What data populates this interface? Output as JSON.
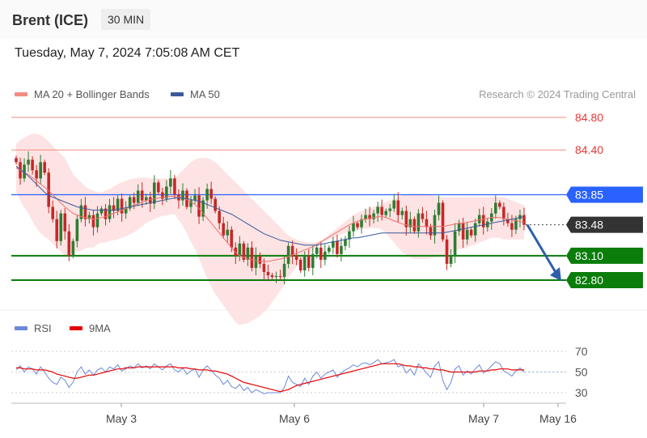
{
  "header": {
    "instrument": "Brent (ICE)",
    "timeframe": "30 MIN"
  },
  "datetime": "Tuesday, May 7, 2024 7:05:08 AM CET",
  "credit": "Research © 2024 Trading Central",
  "colors": {
    "resistance": "#f28b82",
    "pivot": "#2962ff",
    "support": "#0a7d0a",
    "arrow": "#2f5fa8",
    "ma50": "#3a5a9a",
    "rsi": "#6a8ad8",
    "rsi_ma": "#e60000",
    "up": "#2e7d32",
    "down": "#c62828"
  },
  "chart_data": [
    {
      "type": "candlestick",
      "title": "",
      "legend": [
        {
          "name": "MA 20 + Bollinger Bands",
          "color": "#f28b82"
        },
        {
          "name": "MA 50",
          "color": "#3a5a9a"
        }
      ],
      "ylim": [
        82.7,
        84.9
      ],
      "levels": [
        {
          "label": "84.80",
          "value": 84.8,
          "kind": "resistance"
        },
        {
          "label": "84.40",
          "value": 84.4,
          "kind": "resistance"
        },
        {
          "label": "83.85",
          "value": 83.85,
          "kind": "pivot"
        },
        {
          "label": "83.48",
          "value": 83.48,
          "kind": "last"
        },
        {
          "label": "83.10",
          "value": 83.1,
          "kind": "support"
        },
        {
          "label": "82.80",
          "value": 82.8,
          "kind": "support"
        }
      ],
      "forecast": {
        "from": 83.48,
        "to": 82.8,
        "direction": "down"
      },
      "close": [
        84.25,
        84.05,
        84.22,
        84.28,
        84.15,
        84.05,
        84.25,
        84.12,
        83.7,
        83.55,
        83.28,
        83.62,
        83.4,
        83.1,
        83.28,
        83.55,
        83.72,
        83.55,
        83.6,
        83.45,
        83.62,
        83.68,
        83.55,
        83.72,
        83.65,
        83.8,
        83.62,
        83.68,
        83.82,
        83.75,
        83.9,
        83.78,
        83.82,
        83.74,
        84.0,
        83.88,
        83.8,
        83.95,
        84.05,
        83.85,
        83.78,
        83.9,
        83.7,
        83.78,
        83.84,
        83.58,
        83.78,
        83.92,
        83.8,
        83.65,
        83.5,
        83.35,
        83.42,
        83.2,
        83.1,
        83.25,
        83.05,
        83.2,
        82.95,
        83.1,
        83.0,
        82.9,
        82.86,
        82.84,
        82.85,
        82.84,
        83.0,
        83.22,
        83.1,
        83.05,
        82.92,
        83.1,
        82.95,
        83.12,
        83.2,
        83.05,
        83.15,
        83.2,
        83.28,
        83.12,
        83.22,
        83.3,
        83.4,
        83.5,
        83.45,
        83.55,
        83.6,
        83.55,
        83.62,
        83.7,
        83.6,
        83.65,
        83.68,
        83.78,
        83.6,
        83.65,
        83.45,
        83.55,
        83.4,
        83.62,
        83.55,
        83.45,
        83.35,
        83.6,
        83.75,
        83.3,
        83.0,
        83.1,
        83.4,
        83.5,
        83.3,
        83.42,
        83.35,
        83.5,
        83.6,
        83.45,
        83.52,
        83.62,
        83.75,
        83.7,
        83.55,
        83.5,
        83.42,
        83.55,
        83.6,
        83.48
      ],
      "ma20": [
        84.18,
        84.15,
        84.12,
        84.1,
        84.06,
        84.02,
        83.98,
        83.94,
        83.9,
        83.85,
        83.8,
        83.75,
        83.7,
        83.66,
        83.62,
        83.6,
        83.58,
        83.57,
        83.56,
        83.55,
        83.56,
        83.57,
        83.58,
        83.6,
        83.62,
        83.64,
        83.66,
        83.68,
        83.7,
        83.72,
        83.74,
        83.76,
        83.78,
        83.79,
        83.8,
        83.81,
        83.82,
        83.82,
        83.83,
        83.83,
        83.82,
        83.81,
        83.79,
        83.76,
        83.73,
        83.68,
        83.62,
        83.56,
        83.5,
        83.44,
        83.38,
        83.32,
        83.26,
        83.2,
        83.14,
        83.1,
        83.08,
        83.06,
        83.05,
        83.04,
        83.03,
        83.03,
        83.03,
        83.04,
        83.05,
        83.06,
        83.07,
        83.09,
        83.11,
        83.13,
        83.15,
        83.17,
        83.19,
        83.21,
        83.24,
        83.27,
        83.3,
        83.33,
        83.36,
        83.39,
        83.42,
        83.45,
        83.48,
        83.5,
        83.52,
        83.54,
        83.55,
        83.56,
        83.57,
        83.58,
        83.58,
        83.57,
        83.55,
        83.53,
        83.51,
        83.49,
        83.48,
        83.47,
        83.46,
        83.46,
        83.46,
        83.46,
        83.46,
        83.46,
        83.46,
        83.46,
        83.47,
        83.48,
        83.49,
        83.5,
        83.5,
        83.51,
        83.52,
        83.53,
        83.54,
        83.55,
        83.56,
        83.57,
        83.57,
        83.57,
        83.56,
        83.55,
        83.54,
        83.53,
        83.52,
        83.51
      ],
      "band_upper": [
        84.48,
        84.52,
        84.55,
        84.58,
        84.6,
        84.6,
        84.58,
        84.55,
        84.5,
        84.45,
        84.4,
        84.35,
        84.3,
        84.2,
        84.1,
        84.05,
        84.0,
        83.95,
        83.92,
        83.9,
        83.88,
        83.88,
        83.9,
        83.92,
        83.95,
        83.98,
        84.0,
        84.02,
        84.04,
        84.05,
        84.06,
        84.06,
        84.06,
        84.05,
        84.05,
        84.05,
        84.05,
        84.05,
        84.05,
        84.05,
        84.1,
        84.15,
        84.2,
        84.25,
        84.28,
        84.3,
        84.3,
        84.3,
        84.28,
        84.25,
        84.2,
        84.15,
        84.1,
        84.05,
        84.0,
        83.95,
        83.9,
        83.85,
        83.8,
        83.75,
        83.7,
        83.65,
        83.6,
        83.55,
        83.5,
        83.45,
        83.4,
        83.35,
        83.32,
        83.3,
        83.28,
        83.27,
        83.26,
        83.26,
        83.27,
        83.29,
        83.32,
        83.36,
        83.4,
        83.44,
        83.48,
        83.52,
        83.56,
        83.6,
        83.63,
        83.65,
        83.67,
        83.68,
        83.7,
        83.72,
        83.74,
        83.76,
        83.78,
        83.8,
        83.82,
        83.84,
        83.85,
        83.86,
        83.86,
        83.86,
        83.86,
        83.86,
        83.85,
        83.84,
        83.83,
        83.82,
        83.82,
        83.82,
        83.82,
        83.82,
        83.82,
        83.82,
        83.82,
        83.82,
        83.82,
        83.82,
        83.82,
        83.82,
        83.82,
        83.82,
        83.82,
        83.8,
        83.78,
        83.76,
        83.74,
        83.72
      ],
      "band_lower": [
        83.88,
        83.78,
        83.69,
        83.62,
        83.52,
        83.44,
        83.38,
        83.33,
        83.3,
        83.25,
        83.2,
        83.15,
        83.1,
        83.12,
        83.14,
        83.15,
        83.16,
        83.19,
        83.2,
        83.2,
        83.24,
        83.26,
        83.26,
        83.28,
        83.29,
        83.3,
        83.32,
        83.34,
        83.36,
        83.39,
        83.42,
        83.46,
        83.5,
        83.53,
        83.55,
        83.57,
        83.59,
        83.59,
        83.61,
        83.61,
        83.54,
        83.47,
        83.38,
        83.27,
        83.18,
        83.06,
        82.94,
        82.82,
        82.72,
        82.63,
        82.56,
        82.49,
        82.42,
        82.35,
        82.28,
        82.25,
        82.26,
        82.27,
        82.3,
        82.33,
        82.36,
        82.41,
        82.46,
        82.53,
        82.6,
        82.67,
        82.74,
        82.83,
        82.9,
        82.96,
        83.02,
        83.07,
        83.12,
        83.16,
        83.21,
        83.25,
        83.28,
        83.3,
        83.32,
        83.34,
        83.36,
        83.38,
        83.4,
        83.4,
        83.41,
        83.43,
        83.43,
        83.44,
        83.44,
        83.44,
        83.42,
        83.38,
        83.32,
        83.26,
        83.2,
        83.14,
        83.11,
        83.08,
        83.06,
        83.06,
        83.06,
        83.06,
        83.07,
        83.08,
        83.09,
        83.1,
        83.12,
        83.14,
        83.16,
        83.18,
        83.18,
        83.2,
        83.22,
        83.24,
        83.26,
        83.28,
        83.3,
        83.32,
        83.32,
        83.32,
        83.3,
        83.3,
        83.3,
        83.3,
        83.3,
        83.3
      ],
      "ma50": [
        84.2,
        84.16,
        84.12,
        84.08,
        84.03,
        83.98,
        83.93,
        83.88,
        83.84,
        83.82,
        83.8,
        83.78,
        83.76,
        83.74,
        83.72,
        83.7,
        83.69,
        83.68,
        83.67,
        83.66,
        83.66,
        83.66,
        83.66,
        83.66,
        83.66,
        83.67,
        83.68,
        83.69,
        83.7,
        83.71,
        83.72,
        83.73,
        83.74,
        83.75,
        83.76,
        83.77,
        83.78,
        83.79,
        83.8,
        83.81,
        83.81,
        83.81,
        83.8,
        83.79,
        83.78,
        83.77,
        83.75,
        83.73,
        83.71,
        83.69,
        83.67,
        83.65,
        83.63,
        83.61,
        83.58,
        83.55,
        83.52,
        83.49,
        83.46,
        83.43,
        83.4,
        83.37,
        83.35,
        83.33,
        83.31,
        83.29,
        83.28,
        83.27,
        83.26,
        83.25,
        83.24,
        83.23,
        83.23,
        83.23,
        83.23,
        83.24,
        83.25,
        83.26,
        83.27,
        83.28,
        83.29,
        83.3,
        83.31,
        83.32,
        83.32,
        83.33,
        83.34,
        83.35,
        83.36,
        83.37,
        83.38,
        83.38,
        83.38,
        83.38,
        83.38,
        83.38,
        83.38,
        83.38,
        83.38,
        83.38,
        83.38,
        83.38,
        83.38,
        83.38,
        83.38,
        83.38,
        83.39,
        83.4,
        83.41,
        83.42,
        83.43,
        83.44,
        83.45,
        83.46,
        83.47,
        83.48,
        83.49,
        83.5,
        83.51,
        83.52,
        83.53,
        83.54,
        83.55,
        83.56,
        83.57,
        83.58
      ]
    },
    {
      "type": "line",
      "title": "",
      "legend": [
        {
          "name": "RSI",
          "color": "#6a8ad8"
        },
        {
          "name": "9MA",
          "color": "#e60000"
        }
      ],
      "ylim": [
        25,
        75
      ],
      "y_ticks": [
        70,
        50,
        30
      ],
      "x_ticks": [
        "May 3",
        "May 6",
        "May 7",
        "May 16"
      ],
      "rsi": [
        52,
        56,
        50,
        55,
        53,
        48,
        55,
        50,
        44,
        40,
        38,
        45,
        42,
        35,
        40,
        50,
        55,
        48,
        52,
        47,
        52,
        54,
        50,
        55,
        53,
        57,
        51,
        53,
        56,
        54,
        58,
        54,
        56,
        53,
        58,
        55,
        52,
        56,
        58,
        52,
        50,
        54,
        48,
        51,
        53,
        45,
        52,
        56,
        52,
        47,
        44,
        38,
        42,
        36,
        34,
        38,
        32,
        35,
        30,
        33,
        31,
        29,
        30,
        30,
        30,
        30,
        35,
        46,
        40,
        38,
        36,
        44,
        38,
        46,
        50,
        44,
        48,
        50,
        52,
        45,
        49,
        52,
        54,
        57,
        55,
        58,
        59,
        57,
        59,
        62,
        58,
        59,
        60,
        62,
        55,
        57,
        49,
        53,
        47,
        58,
        54,
        49,
        45,
        56,
        60,
        42,
        33,
        40,
        53,
        56,
        47,
        51,
        48,
        53,
        57,
        49,
        52,
        56,
        60,
        58,
        51,
        49,
        46,
        51,
        54,
        50
      ],
      "rsi_ma": [
        54,
        54,
        53,
        53,
        53,
        52,
        52,
        52,
        51,
        50,
        48,
        47,
        46,
        45,
        44,
        44,
        45,
        46,
        47,
        47,
        48,
        49,
        50,
        51,
        52,
        53,
        53,
        54,
        54,
        54,
        55,
        55,
        55,
        55,
        55,
        55,
        55,
        55,
        55,
        55,
        54,
        54,
        54,
        53,
        53,
        52,
        52,
        52,
        51,
        51,
        50,
        49,
        48,
        46,
        44,
        42,
        40,
        39,
        38,
        37,
        36,
        35,
        34,
        33,
        32,
        31,
        32,
        33,
        35,
        37,
        38,
        39,
        40,
        41,
        42,
        43,
        44,
        45,
        46,
        47,
        48,
        49,
        50,
        51,
        52,
        53,
        54,
        55,
        56,
        57,
        58,
        58,
        58,
        58,
        58,
        57,
        56,
        56,
        55,
        55,
        54,
        54,
        53,
        53,
        52,
        52,
        51,
        50,
        50,
        50,
        50,
        50,
        50,
        50,
        51,
        51,
        51,
        52,
        52,
        53,
        53,
        53,
        52,
        52,
        52,
        52
      ]
    }
  ]
}
